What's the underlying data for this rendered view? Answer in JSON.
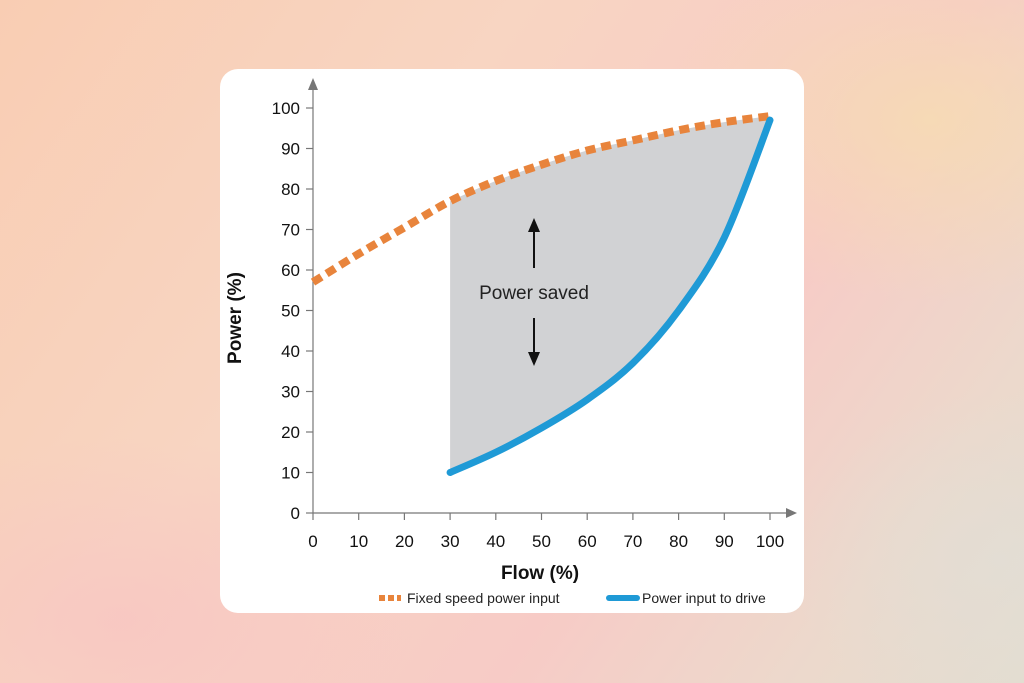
{
  "chart_data": {
    "type": "line",
    "xlabel": "Flow (%)",
    "ylabel": "Power (%)",
    "xlim": [
      0,
      100
    ],
    "ylim": [
      0,
      100
    ],
    "xticks": [
      0,
      10,
      20,
      30,
      40,
      50,
      60,
      70,
      80,
      90,
      100
    ],
    "yticks": [
      0,
      10,
      20,
      30,
      40,
      50,
      60,
      70,
      80,
      90,
      100
    ],
    "grid": false,
    "legend_position": "bottom-right",
    "series": [
      {
        "name": "Fixed speed power input",
        "style": "dashed",
        "color": "#e8843c",
        "x": [
          0,
          10,
          20,
          30,
          40,
          50,
          60,
          70,
          80,
          90,
          100
        ],
        "y": [
          57,
          64,
          70.5,
          77,
          82,
          86,
          89.5,
          92,
          94.5,
          96.5,
          98
        ]
      },
      {
        "name": "Power input to drive",
        "style": "solid",
        "color": "#1f9ad6",
        "x": [
          30,
          40,
          50,
          60,
          70,
          80,
          90,
          100
        ],
        "y": [
          10,
          15,
          21,
          28,
          37,
          50,
          68,
          97
        ]
      }
    ],
    "shaded_region": {
      "label": "Power saved",
      "x_from": 30,
      "x_to": 100,
      "color": "#d1d2d4"
    }
  }
}
